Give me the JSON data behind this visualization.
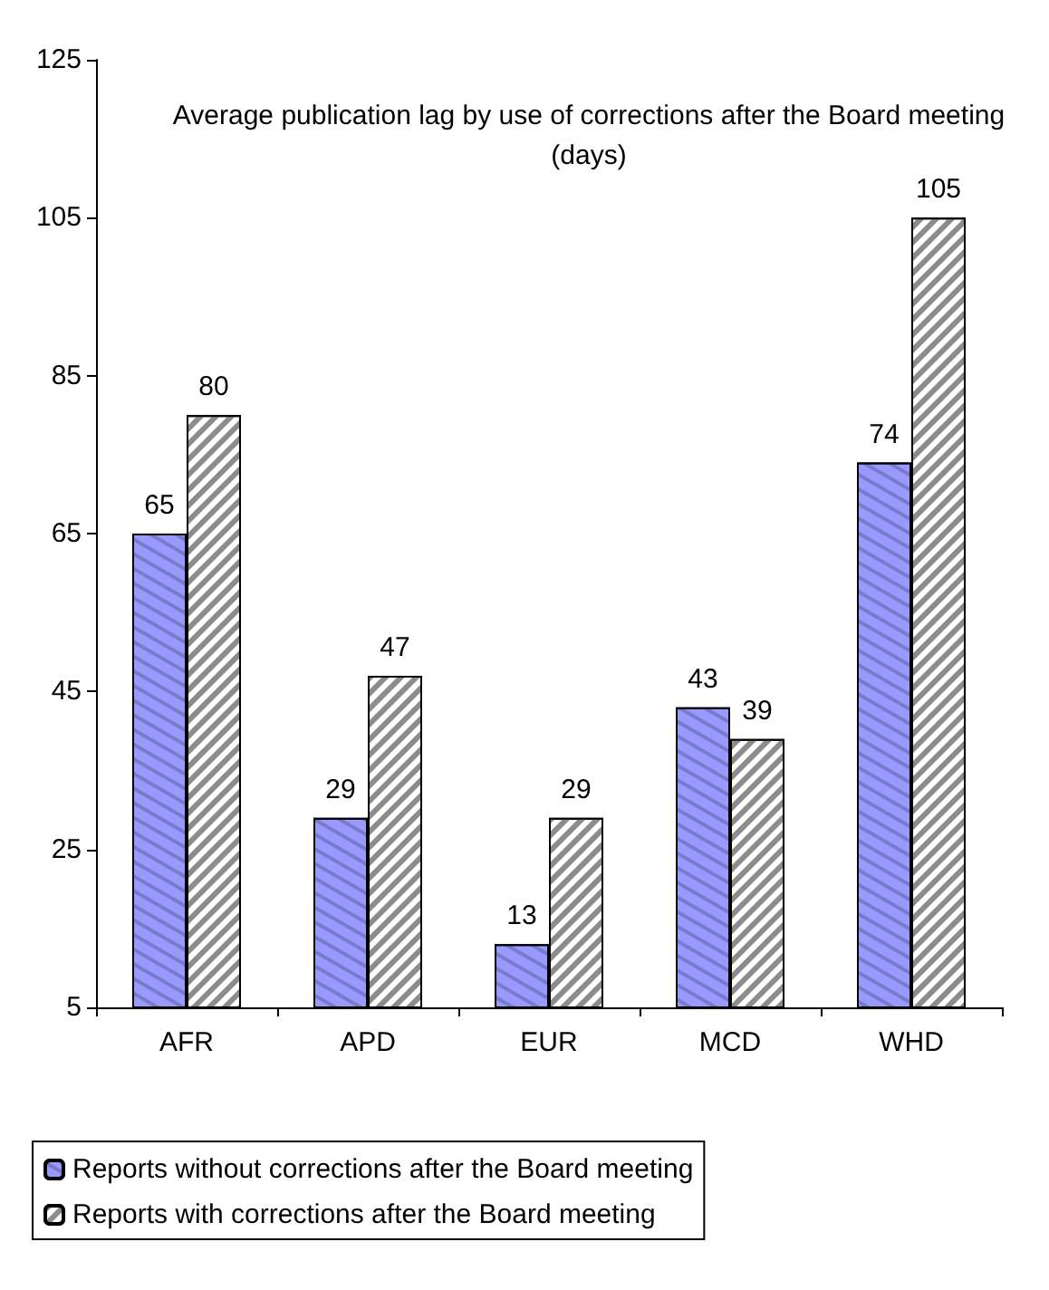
{
  "chart_data": {
    "type": "bar",
    "title": "Average publication lag by use of corrections after the Board meeting\n(days)",
    "categories": [
      "AFR",
      "APD",
      "EUR",
      "MCD",
      "WHD"
    ],
    "series": [
      {
        "name": "Reports without corrections after the Board meeting",
        "color": "#9999ff",
        "values": [
          65,
          29,
          13,
          43,
          74
        ]
      },
      {
        "name": "Reports with corrections after the Board meeting",
        "color": "#ffffff",
        "values": [
          80,
          47,
          29,
          39,
          105
        ]
      }
    ],
    "ylim": [
      5,
      125
    ],
    "yticks": [
      5,
      25,
      45,
      65,
      85,
      105,
      125
    ],
    "grid": false,
    "legend": "bottom left",
    "data_labels": true
  }
}
